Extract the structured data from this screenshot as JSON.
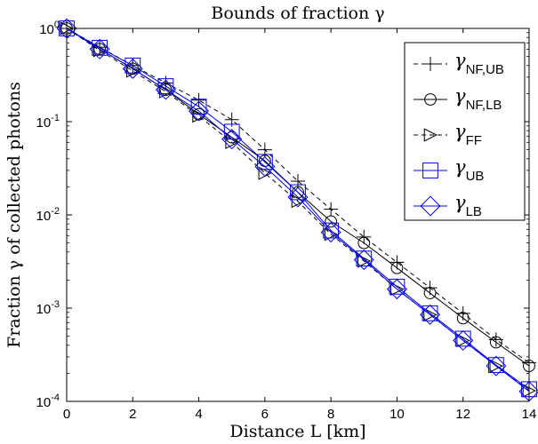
{
  "chart_data": {
    "type": "line",
    "title": "Bounds of fraction γ",
    "xlabel": "Distance L [km]",
    "ylabel": "Fraction γ of collected photons",
    "xlim": [
      0,
      14
    ],
    "ylim": [
      0.0001,
      1
    ],
    "yscale": "log",
    "grid": false,
    "legend_position": "top-right",
    "x_ticks": [
      0,
      2,
      4,
      6,
      8,
      10,
      12,
      14
    ],
    "x_tick_labels": [
      "0",
      "2",
      "4",
      "6",
      "8",
      "10",
      "12",
      "14"
    ],
    "y_ticks": [
      1,
      0.1,
      0.01,
      0.001,
      0.0001
    ],
    "y_tick_labels": [
      {
        "base": "10",
        "exp": "0"
      },
      {
        "base": "10",
        "exp": "-1"
      },
      {
        "base": "10",
        "exp": "-2"
      },
      {
        "base": "10",
        "exp": "-3"
      },
      {
        "base": "10",
        "exp": "-4"
      }
    ],
    "x": [
      0,
      1,
      2,
      3,
      4,
      5,
      6,
      7,
      8,
      9,
      10,
      11,
      12,
      13,
      14
    ],
    "series": [
      {
        "legend": {
          "base": "γ",
          "sub": "NF,UB"
        },
        "color": "#000000",
        "dash": "5,4",
        "marker": "plus",
        "values": [
          1.0,
          0.63,
          0.4,
          0.26,
          0.17,
          0.105,
          0.05,
          0.023,
          0.0115,
          0.0058,
          0.0031,
          0.00165,
          0.00088,
          0.00046,
          0.00026
        ]
      },
      {
        "legend": {
          "base": "γ",
          "sub": "NF,LB"
        },
        "color": "#000000",
        "dash": "",
        "marker": "circle",
        "values": [
          1.0,
          0.6,
          0.37,
          0.22,
          0.12,
          0.068,
          0.038,
          0.0175,
          0.0085,
          0.005,
          0.0027,
          0.00145,
          0.00078,
          0.00043,
          0.00024
        ]
      },
      {
        "legend": {
          "base": "γ",
          "sub": "FF"
        },
        "color": "#000000",
        "dash": "5,4",
        "marker": "triangle-right",
        "values": [
          1.0,
          0.58,
          0.35,
          0.21,
          0.115,
          0.06,
          0.028,
          0.014,
          0.0062,
          0.0032,
          0.0016,
          0.00085,
          0.00045,
          0.00024,
          0.00013
        ]
      },
      {
        "legend": {
          "base": "γ",
          "sub": "UB"
        },
        "color": "#0000ee",
        "dash": "",
        "marker": "square",
        "values": [
          1.0,
          0.62,
          0.4,
          0.24,
          0.145,
          0.078,
          0.037,
          0.0175,
          0.0068,
          0.0034,
          0.0017,
          0.00088,
          0.00047,
          0.000245,
          0.000135
        ]
      },
      {
        "legend": {
          "base": "γ",
          "sub": "LB"
        },
        "color": "#0000ee",
        "dash": "",
        "marker": "diamond",
        "values": [
          1.0,
          0.6,
          0.37,
          0.22,
          0.13,
          0.065,
          0.033,
          0.0155,
          0.0065,
          0.0033,
          0.0016,
          0.00085,
          0.00045,
          0.00024,
          0.000128
        ]
      }
    ]
  }
}
